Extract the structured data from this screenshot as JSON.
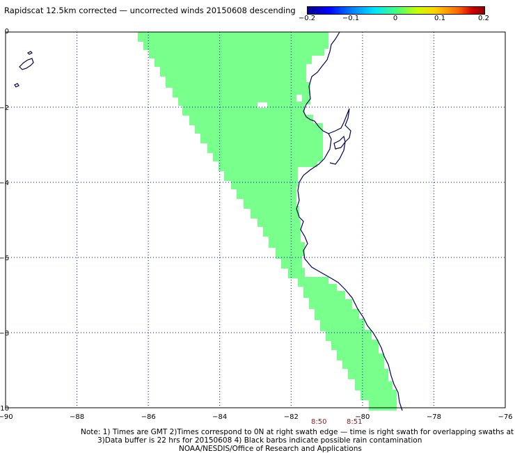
{
  "title": "Rapidscat 12.5km corrected — uncorrected winds 20150608 descending",
  "colorbar": {
    "ticks": [
      "−0.2",
      "−0.1",
      "0",
      "0.1",
      "0.2"
    ],
    "range": [
      -0.2,
      0.2
    ]
  },
  "axes": {
    "lon_ticks": [
      "−90",
      "−88",
      "−86",
      "−84",
      "−82",
      "−80",
      "−78",
      "−76"
    ],
    "lat_ticks": [
      "0",
      "−2",
      "−4",
      "−6",
      "−8",
      "−10"
    ]
  },
  "swath_time_labels": [
    {
      "text": "8:50",
      "color": "#8b1a1a"
    },
    {
      "text": "8:51",
      "color": "#8b1a1a"
    }
  ],
  "notes": {
    "line1": "Note: 1) Times are GMT 2)Times correspond to 0N at right swath edge — time is right swath for overlapping swaths at 0N",
    "line2": "3)Data buffer is 22 hrs for 20150608 4) Black barbs indicate possible rain contamination",
    "line3": "NOAA/NESDIS/Office of Research and Applications"
  },
  "colors": {
    "swath": "#78ff8c",
    "coastline": "#00005a",
    "grid": "#0000c8"
  }
}
